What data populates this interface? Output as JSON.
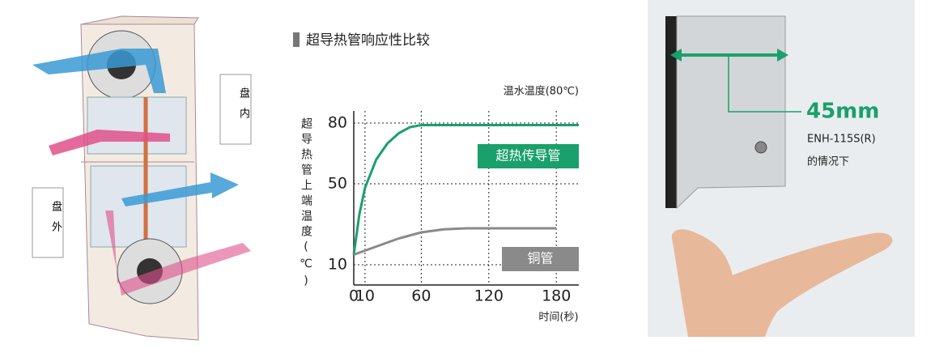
{
  "chart_data": {
    "type": "line",
    "title": "超导热管响应性比较",
    "subtitle": "温水温度(80℃)",
    "y_label": "超导热管上端温度(℃)",
    "x_label": "时间(秒)",
    "x": [
      0,
      5,
      10,
      20,
      30,
      40,
      50,
      60,
      80,
      100,
      120,
      150,
      180,
      200
    ],
    "series": [
      {
        "name": "超热传导管",
        "color": "#1aa06b",
        "values": [
          15,
          35,
          48,
          62,
          70,
          75,
          78,
          79,
          79,
          79,
          79,
          79,
          79,
          79
        ]
      },
      {
        "name": "铜管",
        "color": "#8a8a8a",
        "values": [
          15,
          16,
          17,
          19,
          21,
          23,
          24.5,
          26,
          27.5,
          28,
          28,
          28,
          28,
          null
        ]
      }
    ],
    "xlim": [
      0,
      200
    ],
    "ylim": [
      0,
      88
    ],
    "xticks": [
      0,
      10,
      60,
      120,
      180
    ],
    "yticks": [
      10,
      50,
      80
    ],
    "grid": true
  },
  "illustration": {
    "inside": "盘内",
    "outside": "盘外"
  },
  "photo": {
    "width": "45mm",
    "model": "ENH-115S(R)",
    "caption": "的情况下"
  }
}
